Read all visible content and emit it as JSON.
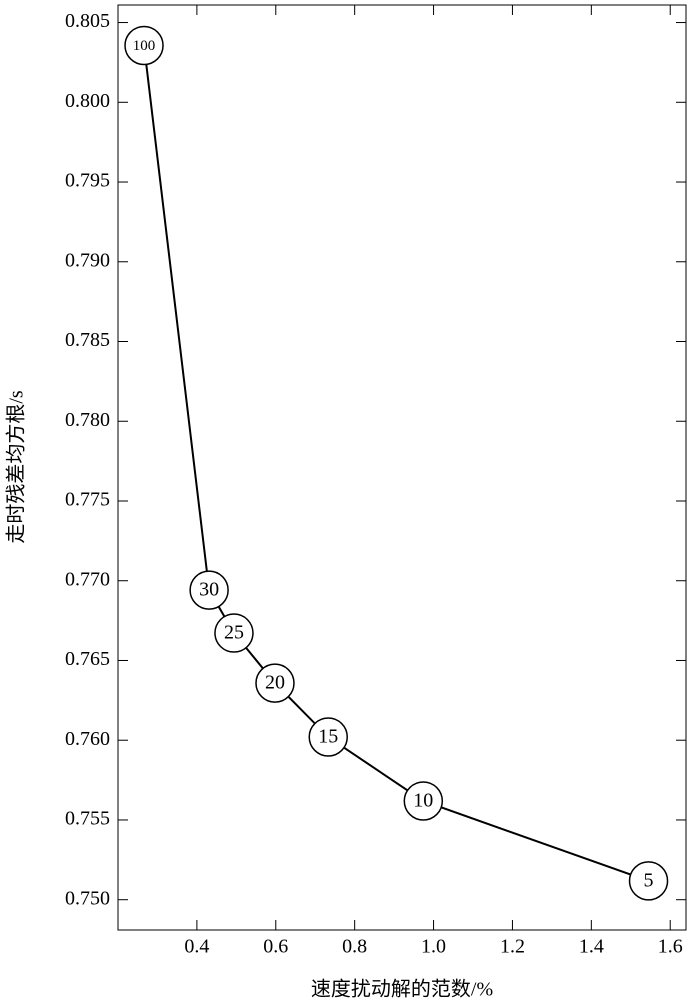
{
  "chart_data": {
    "type": "line",
    "x_label": "速度扰动解的范数/%",
    "y_label": "走时残差均方根/s",
    "x": [
      0.266,
      0.431,
      0.494,
      0.598,
      0.733,
      0.974,
      1.545
    ],
    "series": [
      {
        "color": "#000000",
        "values": [
          0.80356,
          0.76941,
          0.76672,
          0.76358,
          0.7602,
          0.75619,
          0.75118
        ]
      }
    ],
    "point_labels": [
      "100",
      "30",
      "25",
      "20",
      "15",
      "10",
      "5"
    ],
    "xlim": [
      0.2,
      1.64
    ],
    "ylim": [
      0.7481,
      0.8061
    ],
    "xticks": [
      0.4,
      0.6,
      0.8,
      {
        "value": 1.0,
        "label": "1.0"
      },
      1.2,
      1.4,
      1.6
    ],
    "yticks": [
      {
        "value": 0.75,
        "label": "0.750"
      },
      {
        "value": 0.755,
        "label": "0.755"
      },
      {
        "value": 0.76,
        "label": "0.760"
      },
      {
        "value": 0.765,
        "label": "0.765"
      },
      {
        "value": 0.77,
        "label": "0.770"
      },
      {
        "value": 0.775,
        "label": "0.775"
      },
      {
        "value": 0.78,
        "label": "0.780"
      },
      {
        "value": 0.785,
        "label": "0.785"
      },
      {
        "value": 0.79,
        "label": "0.790"
      },
      {
        "value": 0.795,
        "label": "0.795"
      },
      {
        "value": 0.8,
        "label": "0.800"
      },
      {
        "value": 0.805,
        "label": "0.805"
      }
    ],
    "grid": false
  }
}
